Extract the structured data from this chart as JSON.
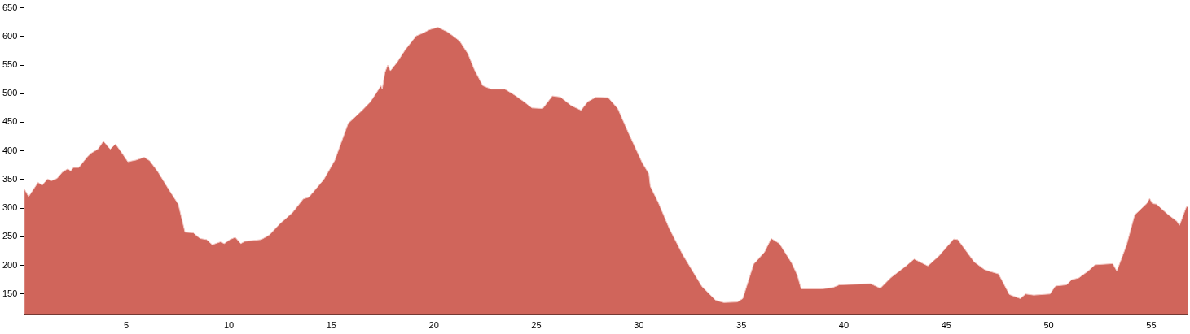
{
  "chart_data": {
    "type": "area",
    "color": "#d0655b",
    "grid": false,
    "legend": false,
    "marker": "none",
    "xlim": [
      0,
      56.77
    ],
    "ylim": [
      113,
      650
    ],
    "xticks": [
      5,
      10,
      15,
      20,
      25,
      30,
      35,
      40,
      45,
      50,
      55
    ],
    "yticks": [
      150,
      200,
      250,
      300,
      350,
      400,
      450,
      500,
      550,
      600,
      650
    ],
    "x": [
      0.03,
      0.23,
      0.69,
      0.89,
      1.15,
      1.35,
      1.62,
      1.88,
      2.15,
      2.28,
      2.42,
      2.68,
      3.08,
      3.28,
      3.61,
      3.88,
      4.21,
      4.47,
      4.81,
      5.07,
      5.47,
      5.87,
      6.13,
      6.53,
      7.06,
      7.53,
      7.86,
      8.26,
      8.59,
      8.92,
      9.19,
      9.58,
      9.78,
      10.05,
      10.31,
      10.58,
      10.78,
      11.58,
      11.97,
      12.5,
      13.1,
      13.63,
      13.9,
      14.63,
      15.16,
      15.82,
      16.48,
      16.89,
      17.15,
      17.42,
      17.48,
      17.61,
      17.75,
      17.88,
      18.21,
      18.61,
      19.14,
      19.41,
      19.81,
      20.2,
      20.66,
      20.93,
      21.26,
      21.66,
      21.99,
      22.39,
      22.79,
      23.46,
      23.92,
      24.32,
      24.79,
      25.31,
      25.78,
      26.18,
      26.71,
      27.18,
      27.51,
      27.91,
      28.51,
      28.97,
      29.5,
      30.17,
      30.49,
      30.56,
      30.96,
      31.49,
      32.15,
      33.08,
      33.75,
      34.14,
      34.81,
      35.07,
      35.6,
      36.13,
      36.46,
      36.86,
      37.46,
      37.73,
      37.92,
      38.92,
      39.45,
      39.78,
      40.51,
      41.31,
      41.78,
      42.31,
      43.04,
      43.43,
      44.1,
      44.63,
      45.36,
      45.56,
      46.36,
      46.89,
      47.55,
      48.08,
      48.61,
      48.87,
      49.27,
      50.06,
      50.33,
      50.86,
      51.12,
      51.46,
      51.92,
      52.26,
      53.12,
      53.32,
      53.79,
      54.19,
      54.78,
      54.92,
      55.05,
      55.25,
      55.78,
      56.25,
      56.38,
      56.71,
      56.77
    ],
    "values": [
      333,
      320,
      345,
      340,
      351,
      348,
      352,
      363,
      369,
      365,
      371,
      371,
      389,
      396,
      403,
      417,
      403,
      412,
      395,
      381,
      384,
      389,
      383,
      364,
      333,
      307,
      258,
      257,
      247,
      245,
      236,
      241,
      238,
      245,
      249,
      238,
      242,
      245,
      253,
      273,
      292,
      316,
      319,
      350,
      383,
      448,
      470,
      485,
      499,
      514,
      508,
      537,
      550,
      540,
      555,
      577,
      601,
      605,
      612,
      616,
      608,
      601,
      592,
      570,
      541,
      514,
      508,
      508,
      498,
      488,
      475,
      474,
      496,
      494,
      479,
      471,
      486,
      494,
      493,
      474,
      431,
      379,
      360,
      338,
      309,
      264,
      218,
      163,
      139,
      135,
      136,
      142,
      202,
      223,
      247,
      238,
      204,
      183,
      159,
      159,
      161,
      166,
      167,
      168,
      160,
      179,
      199,
      211,
      199,
      216,
      246,
      245,
      206,
      192,
      185,
      149,
      142,
      150,
      148,
      150,
      164,
      166,
      175,
      178,
      190,
      201,
      203,
      190,
      235,
      288,
      308,
      317,
      308,
      307,
      290,
      277,
      270,
      302,
      303
    ]
  }
}
